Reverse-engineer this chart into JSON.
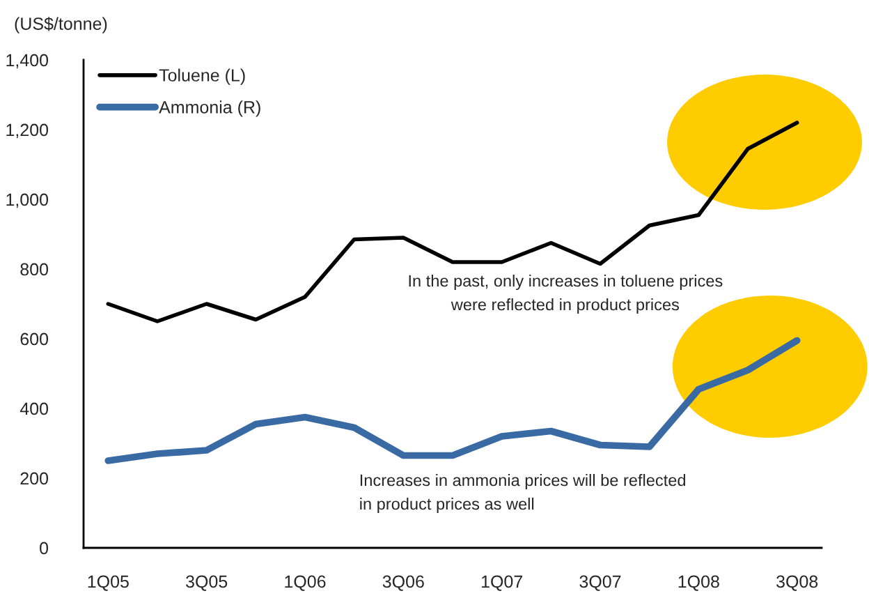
{
  "chart_data": {
    "type": "line",
    "ylabel": "(US$/tonne)",
    "categories": [
      "1Q05",
      null,
      "3Q05",
      null,
      "1Q06",
      null,
      "3Q06",
      null,
      "1Q07",
      null,
      "3Q07",
      null,
      "1Q08",
      null,
      "3Q08"
    ],
    "series": [
      {
        "name": "Toluene (L)",
        "color": "#000000",
        "values": [
          700,
          650,
          700,
          655,
          720,
          885,
          890,
          820,
          820,
          875,
          815,
          925,
          955,
          1145,
          1220
        ]
      },
      {
        "name": "Ammonia (R)",
        "color": "#3a6aa4",
        "values": [
          250,
          270,
          280,
          355,
          375,
          345,
          265,
          265,
          320,
          335,
          295,
          290,
          455,
          510,
          595
        ]
      }
    ],
    "ylim": [
      0,
      1400
    ],
    "yticks": [
      0,
      200,
      400,
      600,
      800,
      {
        "value": 1000,
        "label": "1,000"
      },
      {
        "value": 1200,
        "label": "1,200"
      },
      {
        "value": 1400,
        "label": "1,400"
      }
    ],
    "annotations": [
      "In the past, only increases in toluene prices\nwere reflected in product prices",
      "Increases in ammonia prices will be reflected\nin product prices as well"
    ],
    "legend": "top left"
  }
}
